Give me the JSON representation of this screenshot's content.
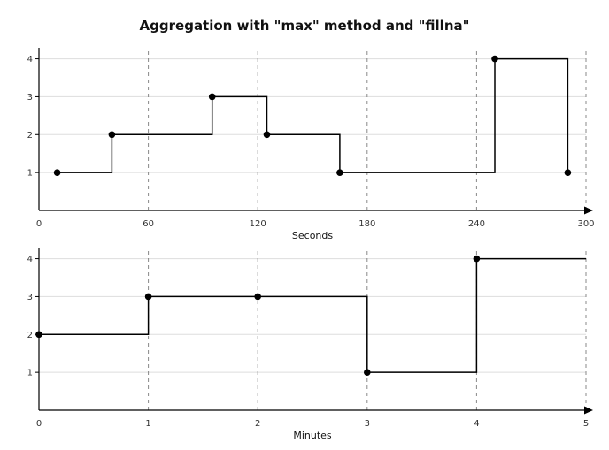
{
  "title": "Aggregation with \"max\" method and \"fillna\"",
  "chart_data": [
    {
      "type": "line",
      "drawstyle": "steps-post",
      "xlabel": "Seconds",
      "ylabel": "",
      "xlim": [
        0,
        300
      ],
      "ylim": [
        0,
        4.2
      ],
      "xticks": [
        0,
        60,
        120,
        180,
        240,
        300
      ],
      "xtick_labels": [
        "0",
        "60",
        "120",
        "180",
        "240",
        "300"
      ],
      "yticks": [
        1,
        2,
        3,
        4
      ],
      "ytick_labels": [
        "1",
        "2",
        "3",
        "4"
      ],
      "x": [
        10,
        40,
        95,
        125,
        165,
        250,
        290
      ],
      "y": [
        1,
        2,
        3,
        2,
        1,
        4,
        1
      ],
      "horizontal_grid": true,
      "vertical_dashed_grid": true,
      "color": "#000000"
    },
    {
      "type": "line",
      "drawstyle": "steps-post",
      "xlabel": "Minutes",
      "ylabel": "",
      "xlim": [
        0,
        5
      ],
      "ylim": [
        0,
        4.2
      ],
      "xticks": [
        0,
        1,
        2,
        3,
        4,
        5
      ],
      "xtick_labels": [
        "0",
        "1",
        "2",
        "3",
        "4",
        "5"
      ],
      "yticks": [
        1,
        2,
        3,
        4
      ],
      "ytick_labels": [
        "1",
        "2",
        "3",
        "4"
      ],
      "x": [
        0,
        1,
        2,
        3,
        4
      ],
      "y": [
        2,
        3,
        3,
        1,
        4
      ],
      "horizontal_grid": true,
      "vertical_dashed_grid": true,
      "color": "#000000"
    }
  ]
}
